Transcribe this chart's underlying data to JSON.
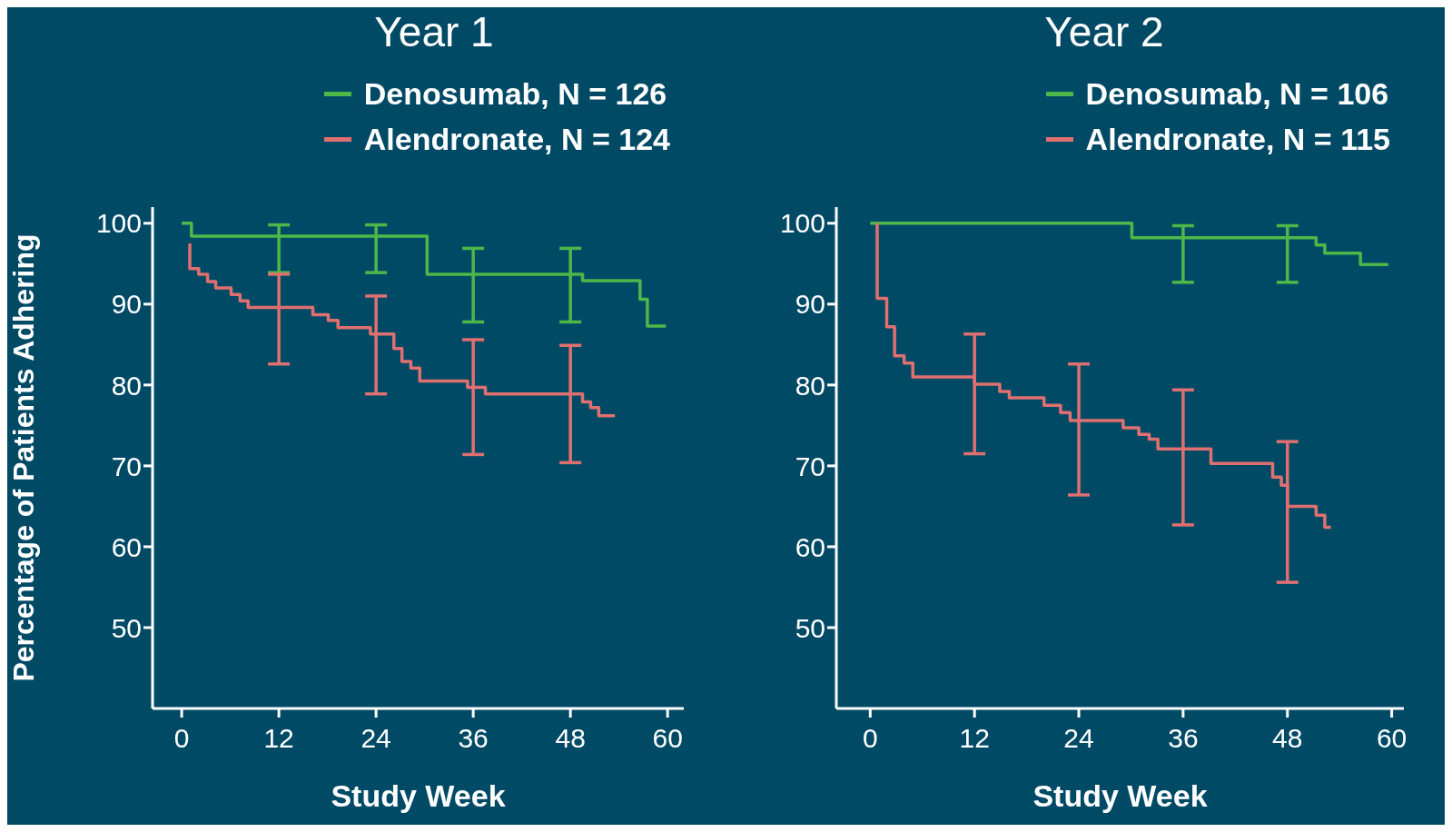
{
  "chart_data": [
    {
      "type": "step",
      "title": "Year 1",
      "xlabel": "Study Week",
      "ylabel": "Percentage of Patients Adhering",
      "xlim": [
        -3.6,
        62
      ],
      "xticks": [
        0,
        12,
        24,
        36,
        48,
        60
      ],
      "ylim": [
        40,
        102
      ],
      "yticks": [
        50,
        60,
        70,
        80,
        90,
        100
      ],
      "legend": "top right",
      "marker": "none",
      "line_style": "solid",
      "series": [
        {
          "name": "Denosumab, N = 126",
          "color": "#4db848",
          "x": [
            0,
            1.2,
            12,
            24,
            30.3,
            36,
            48,
            49.5,
            56.6,
            57.5,
            59.8
          ],
          "values": [
            100,
            98.4,
            98.4,
            98.4,
            93.7,
            93.7,
            93.7,
            92.9,
            90.6,
            87.3,
            87.3
          ],
          "errors": [
            null,
            null,
            [
              93.9,
              99.8
            ],
            [
              93.9,
              99.8
            ],
            null,
            [
              87.8,
              96.9
            ],
            [
              87.8,
              96.9
            ],
            null,
            null,
            null,
            null
          ]
        },
        {
          "name": "Alendronate, N = 124",
          "color": "#e07070",
          "x": [
            1,
            1,
            2.1,
            3.2,
            4.2,
            6.1,
            7.2,
            8.2,
            12,
            16.2,
            18.1,
            19.3,
            23.3,
            24,
            26.2,
            27.2,
            28.3,
            29.4,
            35.3,
            36,
            37.5,
            48,
            49.5,
            50.5,
            51.5,
            53.5
          ],
          "values": [
            97.5,
            94.4,
            93.7,
            92.8,
            92.0,
            91.2,
            90.4,
            89.6,
            89.6,
            88.7,
            88.0,
            87.1,
            86.3,
            86.3,
            84.5,
            82.9,
            82.1,
            80.5,
            79.7,
            79.7,
            78.9,
            78.9,
            77.9,
            77.2,
            76.2,
            76.2
          ],
          "errors": [
            null,
            null,
            null,
            null,
            null,
            null,
            null,
            null,
            [
              82.6,
              93.7
            ],
            null,
            null,
            null,
            null,
            [
              78.9,
              91.0
            ],
            null,
            null,
            null,
            null,
            null,
            [
              71.4,
              85.6
            ],
            null,
            [
              70.4,
              84.9
            ],
            null,
            null,
            null,
            null
          ]
        }
      ]
    },
    {
      "type": "step",
      "title": "Year 2",
      "xlabel": "Study Week",
      "xlim": [
        -3.9,
        61.4
      ],
      "xticks": [
        0,
        12,
        24,
        36,
        48,
        60
      ],
      "ylim": [
        40,
        102
      ],
      "yticks": [
        50,
        60,
        70,
        80,
        90,
        100
      ],
      "legend": "top right",
      "marker": "none",
      "line_style": "solid",
      "series": [
        {
          "name": "Denosumab, N = 106",
          "color": "#4db848",
          "x": [
            0,
            30.1,
            36,
            48,
            51.3,
            52.3,
            56.4,
            59.6
          ],
          "values": [
            100,
            98.2,
            98.2,
            98.2,
            97.3,
            96.3,
            94.9,
            94.9
          ],
          "errors": [
            null,
            null,
            [
              92.7,
              99.7
            ],
            [
              92.7,
              99.7
            ],
            null,
            null,
            null,
            null
          ]
        },
        {
          "name": "Alendronate, N = 115",
          "color": "#e07070",
          "x": [
            0.8,
            0.8,
            1.9,
            2.8,
            3.9,
            4.9,
            12,
            14.9,
            16,
            20,
            21.9,
            23,
            24,
            29.1,
            30.9,
            32.1,
            33.1,
            36,
            39.2,
            46.3,
            47.3,
            48,
            51.3,
            52.3,
            53
          ],
          "values": [
            100,
            90.7,
            87.2,
            83.6,
            82.7,
            81.0,
            80.1,
            79.2,
            78.4,
            77.5,
            76.6,
            75.6,
            75.6,
            74.7,
            73.9,
            73.3,
            72.1,
            72.1,
            70.3,
            68.6,
            67.6,
            65.0,
            63.9,
            62.4,
            62.4
          ],
          "errors": [
            null,
            null,
            null,
            null,
            null,
            null,
            [
              71.5,
              86.3
            ],
            null,
            null,
            null,
            null,
            null,
            [
              66.4,
              82.6
            ],
            null,
            null,
            null,
            null,
            [
              62.7,
              79.4
            ],
            null,
            null,
            null,
            [
              55.6,
              73.0
            ],
            null,
            null,
            null
          ]
        }
      ]
    }
  ]
}
